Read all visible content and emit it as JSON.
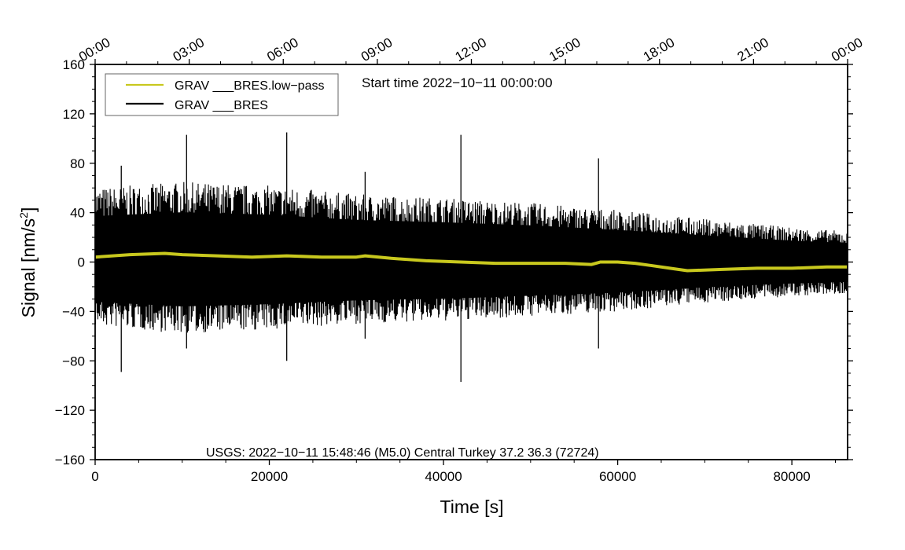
{
  "chart_data": {
    "type": "line",
    "title": "",
    "start_time_label": "Start time 2022−10−11 00:00:00",
    "xlabel": "Time [s]",
    "ylabel_main": "Signal [nm/s",
    "ylabel_sup": "2",
    "ylabel_close": "]",
    "xlim": [
      0,
      86400
    ],
    "ylim": [
      -160,
      160
    ],
    "x_ticks": [
      0,
      20000,
      40000,
      60000,
      80000
    ],
    "x_tick_labels": [
      "0",
      "20000",
      "40000",
      "60000",
      "80000"
    ],
    "y_ticks": [
      -160,
      -120,
      -80,
      -40,
      0,
      40,
      80,
      120,
      160
    ],
    "y_tick_labels": [
      "−160",
      "−120",
      "−80",
      "−40",
      "0",
      "40",
      "80",
      "120",
      "160"
    ],
    "top_axis_ticks_s": [
      0,
      10800,
      21600,
      32400,
      43200,
      54000,
      64800,
      75600,
      86400
    ],
    "top_axis_labels": [
      "00:00",
      "03:00",
      "06:00",
      "09:00",
      "12:00",
      "15:00",
      "18:00",
      "21:00",
      "00:00"
    ],
    "grid": false,
    "legend_position": "top-left",
    "annotation": "USGS: 2022−10−11 15:48:46 (M5.0) Central Turkey 37.2 36.3 (72724)",
    "series": [
      {
        "name": "GRAV ___BRES.low−pass",
        "color": "#c8c81e",
        "x": [
          0,
          4000,
          8000,
          10000,
          14000,
          18000,
          22000,
          26000,
          30000,
          31000,
          34000,
          38000,
          42000,
          46000,
          50000,
          54000,
          57000,
          58000,
          60000,
          62000,
          64000,
          66000,
          68000,
          72000,
          76000,
          80000,
          84000,
          86400
        ],
        "y": [
          4,
          6,
          7,
          6,
          5,
          4,
          5,
          4,
          4,
          5,
          3,
          1,
          0,
          -1,
          -1,
          -1,
          -2,
          0,
          0,
          -1,
          -3,
          -5,
          -7,
          -6,
          -5,
          -5,
          -4,
          -4
        ]
      },
      {
        "name": "GRAV ___BRES",
        "color": "#000000",
        "envelope_x": [
          0,
          10000,
          20000,
          30000,
          40000,
          50000,
          60000,
          70000,
          80000,
          86400
        ],
        "envelope_upper": [
          60,
          65,
          62,
          55,
          52,
          48,
          42,
          35,
          28,
          25
        ],
        "envelope_lower": [
          -52,
          -58,
          -55,
          -50,
          -48,
          -44,
          -40,
          -33,
          -28,
          -26
        ],
        "spikes_x": [
          3000,
          10500,
          22000,
          31000,
          42000,
          57800
        ],
        "spikes_max": [
          78,
          103,
          105,
          73,
          103,
          84
        ],
        "spikes_min": [
          -89,
          -70,
          -80,
          -62,
          -97,
          -70
        ]
      }
    ]
  }
}
